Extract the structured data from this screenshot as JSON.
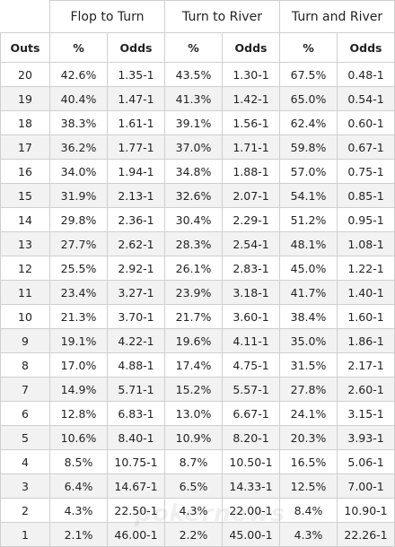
{
  "table": {
    "group_headers": [
      "Flop to Turn",
      "Turn to River",
      "Turn and River"
    ],
    "sub_headers": [
      "Outs",
      "%",
      "Odds",
      "%",
      "Odds",
      "%",
      "Odds"
    ],
    "rows": [
      [
        "20",
        "42.6%",
        "1.35-1",
        "43.5%",
        "1.30-1",
        "67.5%",
        "0.48-1"
      ],
      [
        "19",
        "40.4%",
        "1.47-1",
        "41.3%",
        "1.42-1",
        "65.0%",
        "0.54-1"
      ],
      [
        "18",
        "38.3%",
        "1.61-1",
        "39.1%",
        "1.56-1",
        "62.4%",
        "0.60-1"
      ],
      [
        "17",
        "36.2%",
        "1.77-1",
        "37.0%",
        "1.71-1",
        "59.8%",
        "0.67-1"
      ],
      [
        "16",
        "34.0%",
        "1.94-1",
        "34.8%",
        "1.88-1",
        "57.0%",
        "0.75-1"
      ],
      [
        "15",
        "31.9%",
        "2.13-1",
        "32.6%",
        "2.07-1",
        "54.1%",
        "0.85-1"
      ],
      [
        "14",
        "29.8%",
        "2.36-1",
        "30.4%",
        "2.29-1",
        "51.2%",
        "0.95-1"
      ],
      [
        "13",
        "27.7%",
        "2.62-1",
        "28.3%",
        "2.54-1",
        "48.1%",
        "1.08-1"
      ],
      [
        "12",
        "25.5%",
        "2.92-1",
        "26.1%",
        "2.83-1",
        "45.0%",
        "1.22-1"
      ],
      [
        "11",
        "23.4%",
        "3.27-1",
        "23.9%",
        "3.18-1",
        "41.7%",
        "1.40-1"
      ],
      [
        "10",
        "21.3%",
        "3.70-1",
        "21.7%",
        "3.60-1",
        "38.4%",
        "1.60-1"
      ],
      [
        "9",
        "19.1%",
        "4.22-1",
        "19.6%",
        "4.11-1",
        "35.0%",
        "1.86-1"
      ],
      [
        "8",
        "17.0%",
        "4.88-1",
        "17.4%",
        "4.75-1",
        "31.5%",
        "2.17-1"
      ],
      [
        "7",
        "14.9%",
        "5.71-1",
        "15.2%",
        "5.57-1",
        "27.8%",
        "2.60-1"
      ],
      [
        "6",
        "12.8%",
        "6.83-1",
        "13.0%",
        "6.67-1",
        "24.1%",
        "3.15-1"
      ],
      [
        "5",
        "10.6%",
        "8.40-1",
        "10.9%",
        "8.20-1",
        "20.3%",
        "3.93-1"
      ],
      [
        "4",
        "8.5%",
        "10.75-1",
        "8.7%",
        "10.50-1",
        "16.5%",
        "5.06-1"
      ],
      [
        "3",
        "6.4%",
        "14.67-1",
        "6.5%",
        "14.33-1",
        "12.5%",
        "7.00-1"
      ],
      [
        "2",
        "4.3%",
        "22.50-1",
        "4.3%",
        "22.00-1",
        "8.4%",
        "10.90-1"
      ],
      [
        "1",
        "2.1%",
        "46.00-1",
        "2.2%",
        "45.00-1",
        "4.3%",
        "22.26-1"
      ]
    ]
  },
  "watermark": "pokernews"
}
